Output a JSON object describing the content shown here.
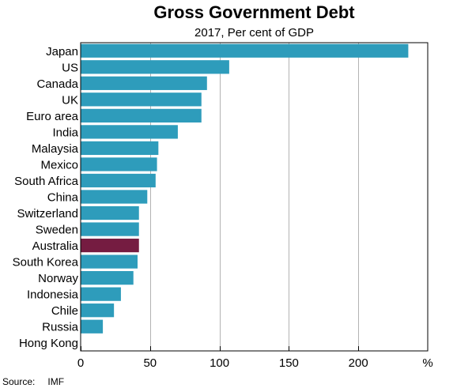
{
  "chart_data": {
    "type": "bar",
    "orientation": "horizontal",
    "title": "Gross Government Debt",
    "subtitle": "2017, Per cent of GDP",
    "unit_label": "%",
    "categories": [
      "Japan",
      "US",
      "Canada",
      "UK",
      "Euro area",
      "India",
      "Malaysia",
      "Mexico",
      "South Africa",
      "China",
      "Switzerland",
      "Sweden",
      "Australia",
      "South Korea",
      "Norway",
      "Indonesia",
      "Chile",
      "Russia",
      "Hong Kong"
    ],
    "values": [
      236,
      107,
      91,
      87,
      87,
      70,
      56,
      55,
      54,
      48,
      42,
      42,
      42,
      41,
      38,
      29,
      24,
      16,
      0
    ],
    "highlight": "Australia",
    "xlim": [
      0,
      250
    ],
    "xticks": [
      0,
      50,
      100,
      150,
      200
    ],
    "grid": true,
    "colors": {
      "bar": "#2e9cbb",
      "highlight": "#751c41",
      "grid": "#b3b3b3",
      "frame": "#000000"
    }
  },
  "source": {
    "label": "Source:",
    "value": "IMF"
  }
}
